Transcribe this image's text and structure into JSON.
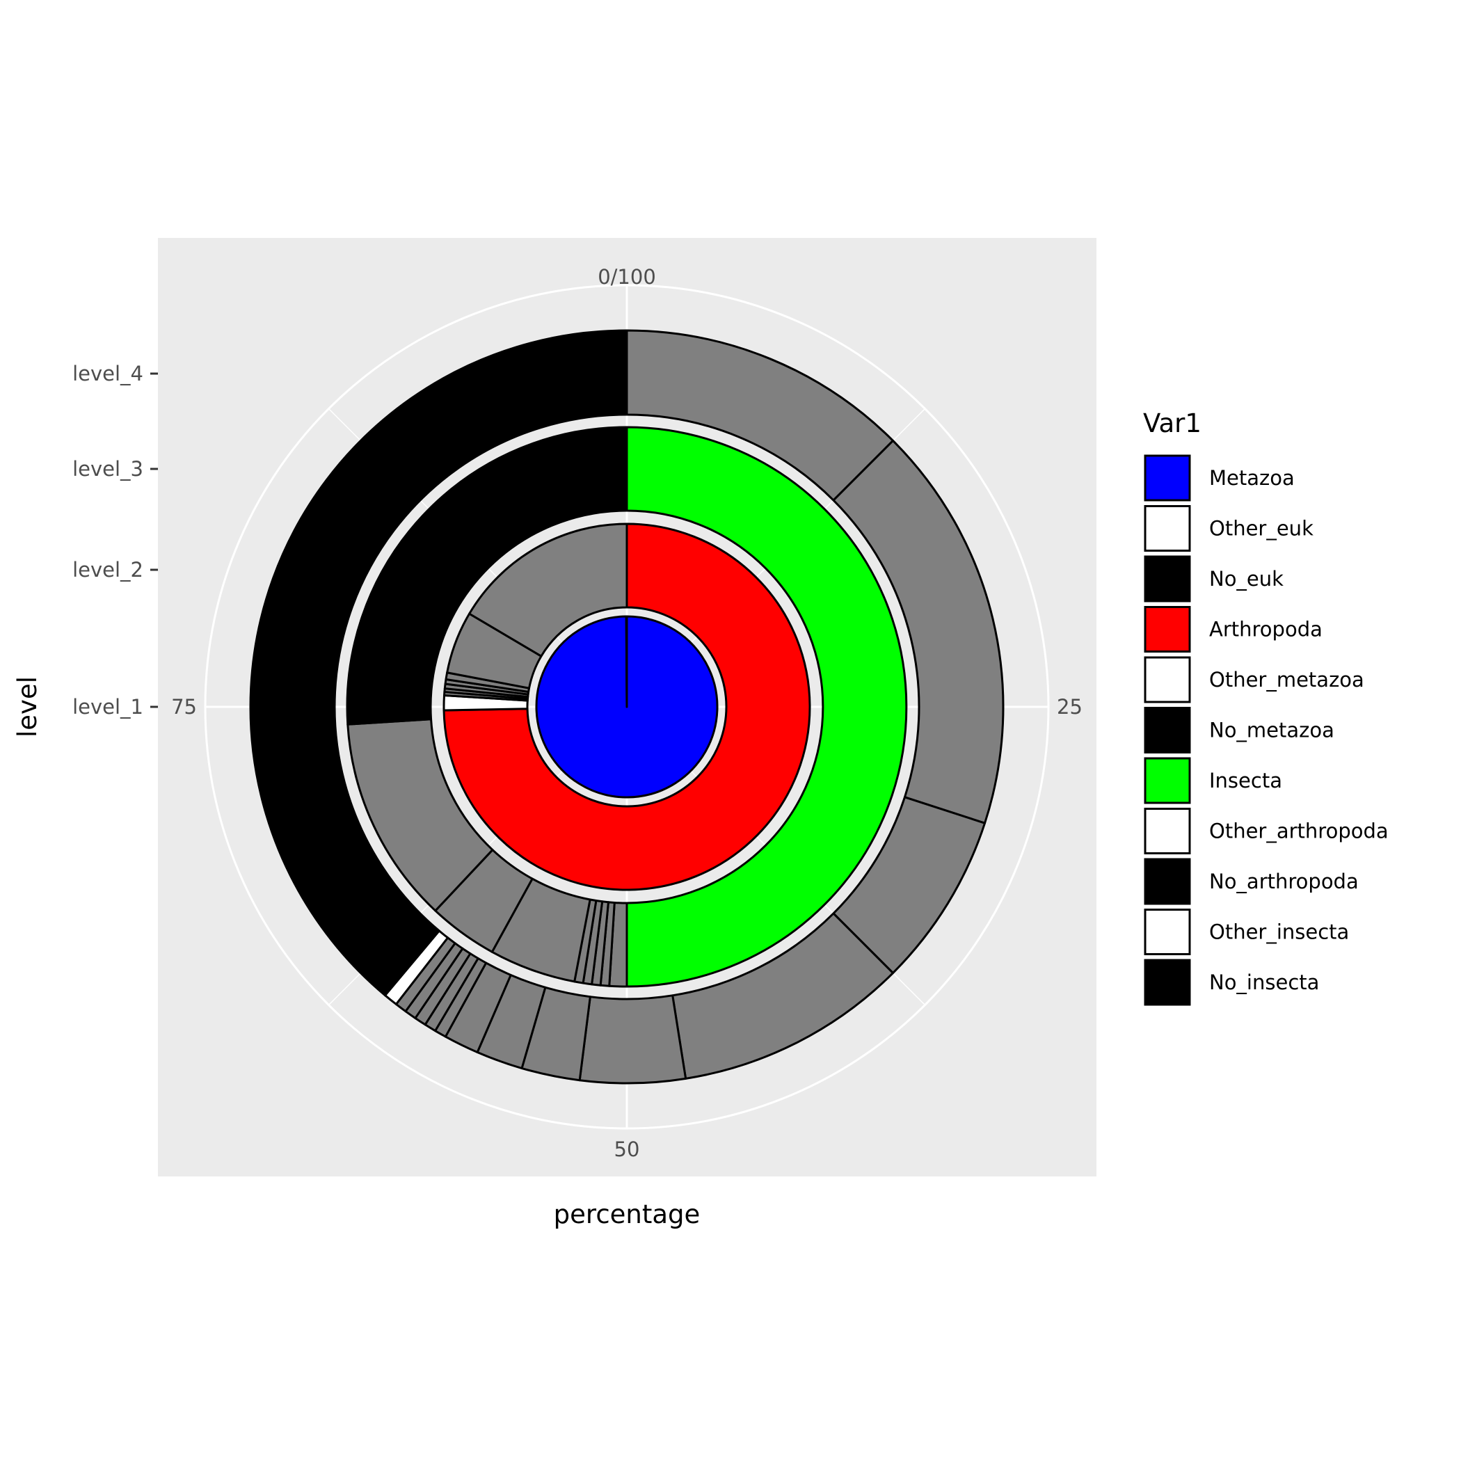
{
  "chart_data": {
    "type": "sunburst",
    "xlabel": "percentage",
    "ylabel": "level",
    "theta_ticks": [
      {
        "value": 0,
        "label": "0/100"
      },
      {
        "value": 25,
        "label": "25"
      },
      {
        "value": 50,
        "label": "50"
      },
      {
        "value": 75,
        "label": "75"
      }
    ],
    "levels": [
      "level_1",
      "level_2",
      "level_3",
      "level_4"
    ],
    "legend": {
      "title": "Var1",
      "position": "right",
      "entries": [
        {
          "label": "Metazoa",
          "color": "#0000ff"
        },
        {
          "label": "Other_euk",
          "color": "#ffffff"
        },
        {
          "label": "No_euk",
          "color": "#000000"
        },
        {
          "label": "Arthropoda",
          "color": "#ff0000"
        },
        {
          "label": "Other_metazoa",
          "color": "#ffffff"
        },
        {
          "label": "No_metazoa",
          "color": "#000000"
        },
        {
          "label": "Insecta",
          "color": "#00ff00"
        },
        {
          "label": "Other_arthropoda",
          "color": "#ffffff"
        },
        {
          "label": "No_arthropoda",
          "color": "#000000"
        },
        {
          "label": "Other_insecta",
          "color": "#ffffff"
        },
        {
          "label": "No_insecta",
          "color": "#000000"
        }
      ]
    },
    "rings": [
      {
        "level": "level_1",
        "segments": [
          {
            "label": "Metazoa",
            "value": 99.9,
            "color": "#0000ff"
          },
          {
            "label": "Other_euk",
            "value": 0.05,
            "color": "#ffffff"
          },
          {
            "label": "No_euk",
            "value": 0.05,
            "color": "#000000"
          }
        ]
      },
      {
        "level": "level_2",
        "segments": [
          {
            "label": "Arthropoda",
            "value": 74.7,
            "color": "#ff0000"
          },
          {
            "label": "Other_metazoa",
            "value": 1.3,
            "color": "#ffffff"
          },
          {
            "label": "",
            "value": 0.3,
            "color": "#808080"
          },
          {
            "label": "",
            "value": 0.3,
            "color": "#808080"
          },
          {
            "label": "",
            "value": 0.4,
            "color": "#808080"
          },
          {
            "label": "",
            "value": 0.4,
            "color": "#808080"
          },
          {
            "label": "",
            "value": 0.6,
            "color": "#808080"
          },
          {
            "label": "",
            "value": 5.5,
            "color": "#808080"
          },
          {
            "label": "",
            "value": 16.5,
            "color": "#808080"
          }
        ]
      },
      {
        "level": "level_3",
        "segments": [
          {
            "label": "Insecta",
            "value": 50.0,
            "color": "#00ff00"
          },
          {
            "label": "",
            "value": 1.0,
            "color": "#808080"
          },
          {
            "label": "",
            "value": 0.5,
            "color": "#808080"
          },
          {
            "label": "",
            "value": 0.5,
            "color": "#808080"
          },
          {
            "label": "",
            "value": 0.5,
            "color": "#808080"
          },
          {
            "label": "",
            "value": 0.5,
            "color": "#808080"
          },
          {
            "label": "",
            "value": 5.0,
            "color": "#808080"
          },
          {
            "label": "",
            "value": 4.0,
            "color": "#808080"
          },
          {
            "label": "",
            "value": 12.0,
            "color": "#808080"
          },
          {
            "label": "No_arthropoda",
            "value": 26.0,
            "color": "#000000"
          }
        ]
      },
      {
        "level": "level_4",
        "segments": [
          {
            "label": "",
            "value": 12.5,
            "color": "#808080"
          },
          {
            "label": "",
            "value": 17.5,
            "color": "#808080"
          },
          {
            "label": "",
            "value": 7.5,
            "color": "#808080"
          },
          {
            "label": "",
            "value": 10.0,
            "color": "#808080"
          },
          {
            "label": "",
            "value": 4.5,
            "color": "#808080"
          },
          {
            "label": "",
            "value": 2.5,
            "color": "#808080"
          },
          {
            "label": "",
            "value": 2.0,
            "color": "#808080"
          },
          {
            "label": "",
            "value": 1.5,
            "color": "#808080"
          },
          {
            "label": "",
            "value": 0.5,
            "color": "#808080"
          },
          {
            "label": "",
            "value": 0.5,
            "color": "#808080"
          },
          {
            "label": "",
            "value": 0.5,
            "color": "#808080"
          },
          {
            "label": "",
            "value": 0.5,
            "color": "#808080"
          },
          {
            "label": "",
            "value": 0.5,
            "color": "#808080"
          },
          {
            "label": "Other_insecta",
            "value": 0.6,
            "color": "#ffffff"
          },
          {
            "label": "No_insecta",
            "value": 38.9,
            "color": "#000000"
          }
        ]
      }
    ]
  }
}
